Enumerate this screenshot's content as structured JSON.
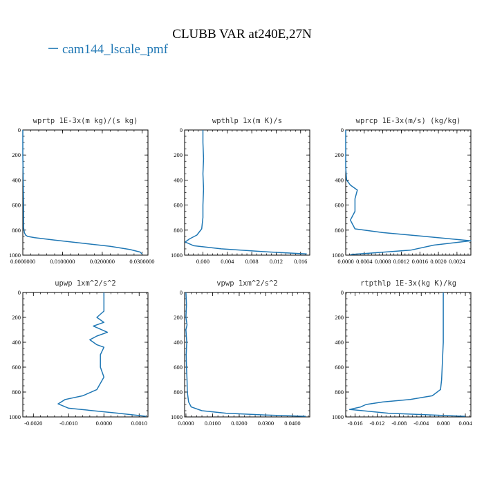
{
  "figure": {
    "title": "CLUBB VAR at240E,27N",
    "legend": [
      {
        "label": "cam144_lscale_pmf",
        "color": "#1f77b4"
      }
    ]
  },
  "chart_data": [
    {
      "type": "line",
      "title": "wprtp  1E-3x(m kg)/(s kg)",
      "xlim": [
        0,
        0.0315
      ],
      "ylim": [
        1000,
        0
      ],
      "xticks": [
        0,
        0.01,
        0.02,
        0.03
      ],
      "xtick_labels": [
        "0.0000000",
        "0.0100000",
        "0.0200000",
        "0.0300000"
      ],
      "yticks": [
        0,
        200,
        400,
        600,
        800,
        1000
      ],
      "ytick_labels": [
        "0",
        "200",
        "400",
        "600",
        "800",
        "1000"
      ],
      "series": [
        {
          "color": "#1f77b4",
          "x": [
            0.0,
            0.0,
            0.0001,
            0.0002,
            0.0002,
            0.0004,
            0.0007,
            0.0012,
            0.003,
            0.008,
            0.015,
            0.022,
            0.027,
            0.0295,
            0.03
          ],
          "y": [
            0,
            200,
            400,
            600,
            780,
            820,
            840,
            850,
            860,
            880,
            905,
            930,
            955,
            975,
            990
          ]
        }
      ]
    },
    {
      "type": "line",
      "title": "wpthlp  1x(m K)/s",
      "xlim": [
        -0.003,
        0.0175
      ],
      "ylim": [
        1000,
        0
      ],
      "xticks": [
        0,
        0.004,
        0.008,
        0.012,
        0.016
      ],
      "xtick_labels": [
        "0.000",
        "0.004",
        "0.008",
        "0.012",
        "0.016"
      ],
      "series": [
        {
          "color": "#1f77b4",
          "x": [
            0.0,
            0.0,
            0.0001,
            0.0,
            0.0001,
            0.0,
            0.0,
            -0.0002,
            -0.001,
            -0.0022,
            -0.0029,
            -0.0015,
            0.003,
            0.011,
            0.017
          ],
          "y": [
            0,
            100,
            230,
            350,
            470,
            600,
            700,
            790,
            840,
            870,
            895,
            925,
            950,
            975,
            990
          ]
        }
      ]
    },
    {
      "type": "line",
      "title": "wprcp  1E-3x(m/s) (kg/kg)",
      "xlim": [
        0,
        0.0027
      ],
      "ylim": [
        1000,
        0
      ],
      "xticks": [
        0,
        0.0004,
        0.0008,
        0.0012,
        0.0016,
        0.002,
        0.0024
      ],
      "xtick_labels": [
        "0.0000",
        "0.0004",
        "0.0008",
        "0.0012",
        "0.0016",
        "0.0020",
        "0.0024"
      ],
      "series": [
        {
          "color": "#1f77b4",
          "x": [
            0.0,
            0.0,
            2e-05,
            0.0001,
            0.00025,
            0.0002,
            0.0002,
            0.0001,
            0.0002,
            0.0008,
            0.0017,
            0.0027,
            0.0019,
            0.0014,
            0.0005,
            0.0001
          ],
          "y": [
            0,
            300,
            400,
            440,
            480,
            550,
            650,
            720,
            790,
            820,
            850,
            885,
            920,
            960,
            985,
            995
          ]
        }
      ]
    },
    {
      "type": "line",
      "title": "upwp  1xm^2/s^2",
      "xlim": [
        -0.0023,
        0.00125
      ],
      "ylim": [
        1000,
        0
      ],
      "xticks": [
        -0.002,
        -0.001,
        0,
        0.001
      ],
      "xtick_labels": [
        "-0.0020",
        "-0.0010",
        "0.0000",
        "0.0010"
      ],
      "series": [
        {
          "color": "#1f77b4",
          "x": [
            0.0,
            0.0,
            -0.0002,
            0.0,
            -0.0003,
            0.0001,
            -0.0002,
            -0.0004,
            -0.0002,
            0.0,
            -0.0001,
            -0.0001,
            0.0,
            -0.0002,
            -0.0006,
            -0.0011,
            -0.0013,
            -0.001,
            0.0004,
            0.0012
          ],
          "y": [
            0,
            150,
            200,
            240,
            270,
            320,
            350,
            380,
            420,
            440,
            500,
            600,
            680,
            780,
            830,
            860,
            895,
            930,
            970,
            995
          ]
        }
      ]
    },
    {
      "type": "line",
      "title": "vpwp  1xm^2/s^2",
      "xlim": [
        -0.0005,
        0.0465
      ],
      "ylim": [
        1000,
        0
      ],
      "xticks": [
        0,
        0.01,
        0.02,
        0.03,
        0.04
      ],
      "xtick_labels": [
        "0.0000",
        "0.0100",
        "0.0200",
        "0.0300",
        "0.0400"
      ],
      "series": [
        {
          "color": "#1f77b4",
          "x": [
            0.0,
            0.0002,
            0.0,
            0.0004,
            0.0,
            0.0003,
            0.0001,
            0.0002,
            0.0004,
            0.0005,
            0.001,
            0.002,
            0.006,
            0.015,
            0.03,
            0.045
          ],
          "y": [
            0,
            100,
            200,
            260,
            300,
            400,
            500,
            600,
            700,
            800,
            880,
            920,
            950,
            970,
            985,
            995
          ]
        }
      ]
    },
    {
      "type": "line",
      "title": "rtpthlp  1E-3x(kg K)/kg",
      "xlim": [
        -0.0177,
        0.005
      ],
      "ylim": [
        1000,
        0
      ],
      "xticks": [
        -0.016,
        -0.012,
        -0.008,
        -0.004,
        0,
        0.004
      ],
      "xtick_labels": [
        "-0.016",
        "-0.012",
        "-0.008",
        "-0.004",
        "0.000",
        "0.004"
      ],
      "series": [
        {
          "color": "#1f77b4",
          "x": [
            0.0,
            0.0,
            -0.0001,
            -0.0002,
            -0.0003,
            -0.0005,
            -0.002,
            -0.006,
            -0.011,
            -0.014,
            -0.015,
            -0.017,
            -0.01,
            0.004
          ],
          "y": [
            0,
            400,
            500,
            600,
            700,
            780,
            830,
            860,
            880,
            900,
            920,
            940,
            970,
            995
          ]
        }
      ]
    }
  ]
}
